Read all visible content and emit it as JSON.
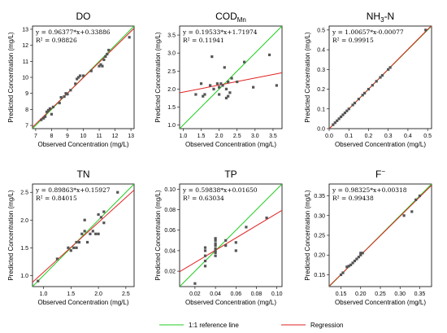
{
  "colors": {
    "reference": "#22cc22",
    "regression": "#e02020",
    "points": "#555555"
  },
  "legend": {
    "reference_label": "1:1 reference line",
    "regression_label": "Regression"
  },
  "chart_data": [
    {
      "type": "scatter",
      "title": "DO",
      "equation": "y = 0.96377*x+0.33886",
      "r2": "R² = 0.98826",
      "xlabel": "Observed Concentration (mg/L)",
      "ylabel": "Predicted Concentration (mg/L)",
      "xlim": [
        6.8,
        13.2
      ],
      "ylim": [
        6.8,
        13.2
      ],
      "xticks": [
        "7",
        "8",
        "9",
        "10",
        "11",
        "12",
        "13"
      ],
      "xtick_values": [
        7,
        8,
        9,
        10,
        11,
        12,
        13
      ],
      "yticks": [
        "7",
        "8",
        "9",
        "10",
        "11",
        "12",
        "13"
      ],
      "ytick_values": [
        7,
        8,
        9,
        10,
        11,
        12,
        13
      ],
      "regression": {
        "slope": 0.96377,
        "intercept": 0.33886
      },
      "points": [
        [
          7.35,
          7.35
        ],
        [
          7.5,
          7.45
        ],
        [
          7.6,
          7.55
        ],
        [
          7.7,
          7.85
        ],
        [
          7.8,
          7.95
        ],
        [
          7.9,
          8.05
        ],
        [
          8.0,
          7.7
        ],
        [
          8.1,
          8.15
        ],
        [
          8.5,
          8.4
        ],
        [
          8.6,
          8.75
        ],
        [
          8.8,
          8.8
        ],
        [
          8.9,
          9.0
        ],
        [
          9.0,
          8.95
        ],
        [
          9.2,
          9.2
        ],
        [
          9.5,
          9.6
        ],
        [
          9.6,
          9.9
        ],
        [
          9.7,
          10.0
        ],
        [
          9.8,
          10.1
        ],
        [
          10.0,
          10.1
        ],
        [
          10.5,
          10.4
        ],
        [
          11.0,
          10.7
        ],
        [
          11.1,
          10.8
        ],
        [
          11.2,
          10.7
        ],
        [
          11.3,
          11.1
        ],
        [
          11.4,
          11.3
        ],
        [
          11.5,
          11.45
        ],
        [
          11.6,
          11.7
        ],
        [
          12.9,
          12.5
        ]
      ]
    },
    {
      "type": "scatter",
      "title": "COD",
      "title_sub": "Mn",
      "equation": "y = 0.19533*x+1.71974",
      "r2": "R² = 0.11941",
      "xlabel": "Observed Concentration (mg/L)",
      "ylabel": "Predicted Concentration (mg/L)",
      "xlim": [
        0.9,
        3.75
      ],
      "ylim": [
        0.9,
        3.75
      ],
      "xticks": [
        "1.0",
        "1.5",
        "2.0",
        "2.5",
        "3.0",
        "3.5"
      ],
      "xtick_values": [
        1.0,
        1.5,
        2.0,
        2.5,
        3.0,
        3.5
      ],
      "yticks": [
        "1.0",
        "1.5",
        "2.0",
        "2.5",
        "3.0",
        "3.5"
      ],
      "ytick_values": [
        1.0,
        1.5,
        2.0,
        2.5,
        3.0,
        3.5
      ],
      "regression": {
        "slope": 0.19533,
        "intercept": 1.71974
      },
      "points": [
        [
          1.35,
          1.85
        ],
        [
          1.5,
          2.15
        ],
        [
          1.55,
          1.8
        ],
        [
          1.6,
          1.85
        ],
        [
          1.75,
          2.1
        ],
        [
          1.8,
          2.9
        ],
        [
          1.85,
          2.0
        ],
        [
          1.95,
          2.15
        ],
        [
          2.0,
          2.05
        ],
        [
          2.0,
          1.85
        ],
        [
          2.05,
          2.15
        ],
        [
          2.1,
          2.1
        ],
        [
          2.15,
          2.6
        ],
        [
          2.2,
          1.75
        ],
        [
          2.2,
          2.0
        ],
        [
          2.25,
          2.2
        ],
        [
          2.25,
          1.8
        ],
        [
          2.3,
          1.9
        ],
        [
          2.35,
          2.3
        ],
        [
          2.5,
          2.2
        ],
        [
          2.7,
          2.75
        ],
        [
          2.95,
          2.05
        ],
        [
          3.4,
          2.95
        ],
        [
          3.6,
          2.1
        ]
      ]
    },
    {
      "type": "scatter",
      "title": "NH",
      "title_sub": "3",
      "title_suffix": "-N",
      "equation": "y = 1.00657*x-0.00077",
      "r2": "R² = 0.99915",
      "xlabel": "Observed Concentration (mg/L)",
      "ylabel": "Predicted Concentration (mg/L)",
      "xlim": [
        0,
        0.52
      ],
      "ylim": [
        0,
        0.52
      ],
      "xticks": [
        "0.0",
        "0.1",
        "0.2",
        "0.3",
        "0.4",
        "0.5"
      ],
      "xtick_values": [
        0.0,
        0.1,
        0.2,
        0.3,
        0.4,
        0.5
      ],
      "yticks": [
        "0.0",
        "0.1",
        "0.2",
        "0.3",
        "0.4",
        "0.5"
      ],
      "ytick_values": [
        0.0,
        0.1,
        0.2,
        0.3,
        0.4,
        0.5
      ],
      "regression": {
        "slope": 1.00657,
        "intercept": -0.00077
      },
      "points": [
        [
          0.02,
          0.02
        ],
        [
          0.03,
          0.03
        ],
        [
          0.04,
          0.04
        ],
        [
          0.05,
          0.05
        ],
        [
          0.06,
          0.06
        ],
        [
          0.07,
          0.07
        ],
        [
          0.08,
          0.08
        ],
        [
          0.09,
          0.09
        ],
        [
          0.1,
          0.1
        ],
        [
          0.12,
          0.12
        ],
        [
          0.13,
          0.13
        ],
        [
          0.15,
          0.15
        ],
        [
          0.17,
          0.17
        ],
        [
          0.18,
          0.18
        ],
        [
          0.2,
          0.2
        ],
        [
          0.22,
          0.22
        ],
        [
          0.24,
          0.24
        ],
        [
          0.26,
          0.26
        ],
        [
          0.27,
          0.27
        ],
        [
          0.3,
          0.3
        ],
        [
          0.31,
          0.31
        ],
        [
          0.49,
          0.5
        ]
      ]
    },
    {
      "type": "scatter",
      "title": "TN",
      "equation": "y = 0.89863*x+0.15927",
      "r2": "R² = 0.84015",
      "xlabel": "Observed Concentration (mg/L)",
      "ylabel": "Predicted Concentration (mg/L)",
      "xlim": [
        0.8,
        2.65
      ],
      "ylim": [
        0.8,
        2.65
      ],
      "xticks": [
        "1.0",
        "1.5",
        "2.0",
        "2.5"
      ],
      "xtick_values": [
        1.0,
        1.5,
        2.0,
        2.5
      ],
      "yticks": [
        "1.0",
        "1.5",
        "2.0",
        "2.5"
      ],
      "ytick_values": [
        1.0,
        1.5,
        2.0,
        2.5
      ],
      "regression": {
        "slope": 0.89863,
        "intercept": 0.15927
      },
      "points": [
        [
          0.9,
          0.9
        ],
        [
          1.25,
          1.3
        ],
        [
          1.45,
          1.5
        ],
        [
          1.5,
          1.45
        ],
        [
          1.55,
          1.5
        ],
        [
          1.6,
          1.5
        ],
        [
          1.6,
          1.6
        ],
        [
          1.65,
          1.6
        ],
        [
          1.7,
          1.75
        ],
        [
          1.75,
          1.8
        ],
        [
          1.75,
          2.0
        ],
        [
          1.8,
          1.6
        ],
        [
          1.85,
          1.75
        ],
        [
          1.9,
          1.8
        ],
        [
          1.95,
          1.75
        ],
        [
          2.0,
          1.75
        ],
        [
          2.0,
          2.1
        ],
        [
          2.05,
          2.05
        ],
        [
          2.1,
          1.95
        ],
        [
          2.1,
          2.15
        ],
        [
          2.35,
          2.5
        ]
      ]
    },
    {
      "type": "scatter",
      "title": "TP",
      "equation": "y = 0.59838*x+0.01650",
      "r2": "R² = 0.63034",
      "xlabel": "Observed Concentration (mg/L)",
      "ylabel": "Predicted Concentration (mg/L)",
      "xlim": [
        0.005,
        0.105
      ],
      "ylim": [
        0.005,
        0.105
      ],
      "xticks": [
        "0.02",
        "0.04",
        "0.06",
        "0.08",
        "0.10"
      ],
      "xtick_values": [
        0.02,
        0.04,
        0.06,
        0.08,
        0.1
      ],
      "yticks": [
        "0.02",
        "0.04",
        "0.06",
        "0.08",
        "0.10"
      ],
      "ytick_values": [
        0.02,
        0.04,
        0.06,
        0.08,
        0.1
      ],
      "regression": {
        "slope": 0.59838,
        "intercept": 0.0165
      },
      "points": [
        [
          0.02,
          0.008
        ],
        [
          0.03,
          0.025
        ],
        [
          0.03,
          0.03
        ],
        [
          0.03,
          0.035
        ],
        [
          0.03,
          0.04
        ],
        [
          0.03,
          0.043
        ],
        [
          0.04,
          0.035
        ],
        [
          0.04,
          0.038
        ],
        [
          0.04,
          0.04
        ],
        [
          0.04,
          0.042
        ],
        [
          0.04,
          0.045
        ],
        [
          0.04,
          0.047
        ],
        [
          0.04,
          0.05
        ],
        [
          0.04,
          0.052
        ],
        [
          0.05,
          0.045
        ],
        [
          0.05,
          0.05
        ],
        [
          0.06,
          0.04
        ],
        [
          0.06,
          0.048
        ],
        [
          0.07,
          0.063
        ],
        [
          0.09,
          0.072
        ]
      ]
    },
    {
      "type": "scatter",
      "title": "F",
      "title_sup": "−",
      "equation": "y = 0.98325*x+0.00318",
      "r2": "R² = 0.99438",
      "xlabel": "Observed Concentration (mg/L)",
      "ylabel": "Predicted Concentration (mg/L)",
      "xlim": [
        0.12,
        0.38
      ],
      "ylim": [
        0.12,
        0.38
      ],
      "xticks": [
        "0.15",
        "0.20",
        "0.25",
        "0.30",
        "0.35"
      ],
      "xtick_values": [
        0.15,
        0.2,
        0.25,
        0.3,
        0.35
      ],
      "yticks": [
        "0.15",
        "0.20",
        "0.25",
        "0.30",
        "0.35"
      ],
      "ytick_values": [
        0.15,
        0.2,
        0.25,
        0.3,
        0.35
      ],
      "regression": {
        "slope": 0.98325,
        "intercept": 0.00318
      },
      "points": [
        [
          0.15,
          0.15
        ],
        [
          0.155,
          0.155
        ],
        [
          0.165,
          0.17
        ],
        [
          0.17,
          0.172
        ],
        [
          0.175,
          0.175
        ],
        [
          0.18,
          0.18
        ],
        [
          0.185,
          0.185
        ],
        [
          0.19,
          0.19
        ],
        [
          0.195,
          0.195
        ],
        [
          0.2,
          0.2
        ],
        [
          0.2,
          0.205
        ],
        [
          0.205,
          0.205
        ],
        [
          0.31,
          0.3
        ],
        [
          0.33,
          0.31
        ],
        [
          0.34,
          0.34
        ],
        [
          0.35,
          0.35
        ]
      ]
    }
  ]
}
